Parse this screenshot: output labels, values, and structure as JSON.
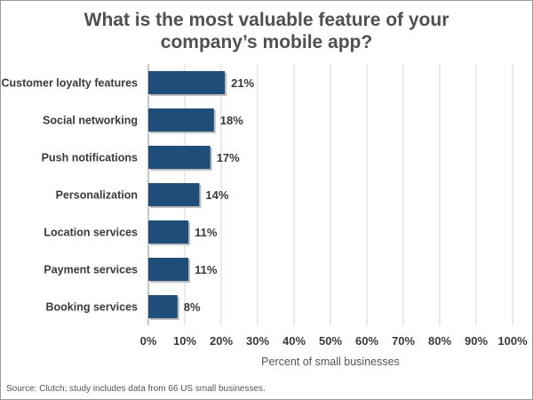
{
  "chart_data": {
    "type": "bar",
    "orientation": "horizontal",
    "title_line1": "What is the most valuable feature of your",
    "title_line2": "company’s mobile app?",
    "categories": [
      "Customer loyalty features",
      "Social networking",
      "Push notifications",
      "Personalization",
      "Location services",
      "Payment services",
      "Booking services"
    ],
    "values": [
      21,
      18,
      17,
      14,
      11,
      11,
      8
    ],
    "value_labels": [
      "21%",
      "18%",
      "17%",
      "14%",
      "11%",
      "11%",
      "8%"
    ],
    "xlabel": "Percent of small businesses",
    "xlim": [
      0,
      100
    ],
    "xticks": [
      "0%",
      "10%",
      "20%",
      "30%",
      "40%",
      "50%",
      "60%",
      "70%",
      "80%",
      "90%",
      "100%"
    ],
    "grid": "vertical",
    "bar_color": "#1f4e79",
    "source": "Source: Clutch; study includes data from 66 US small businesses."
  }
}
